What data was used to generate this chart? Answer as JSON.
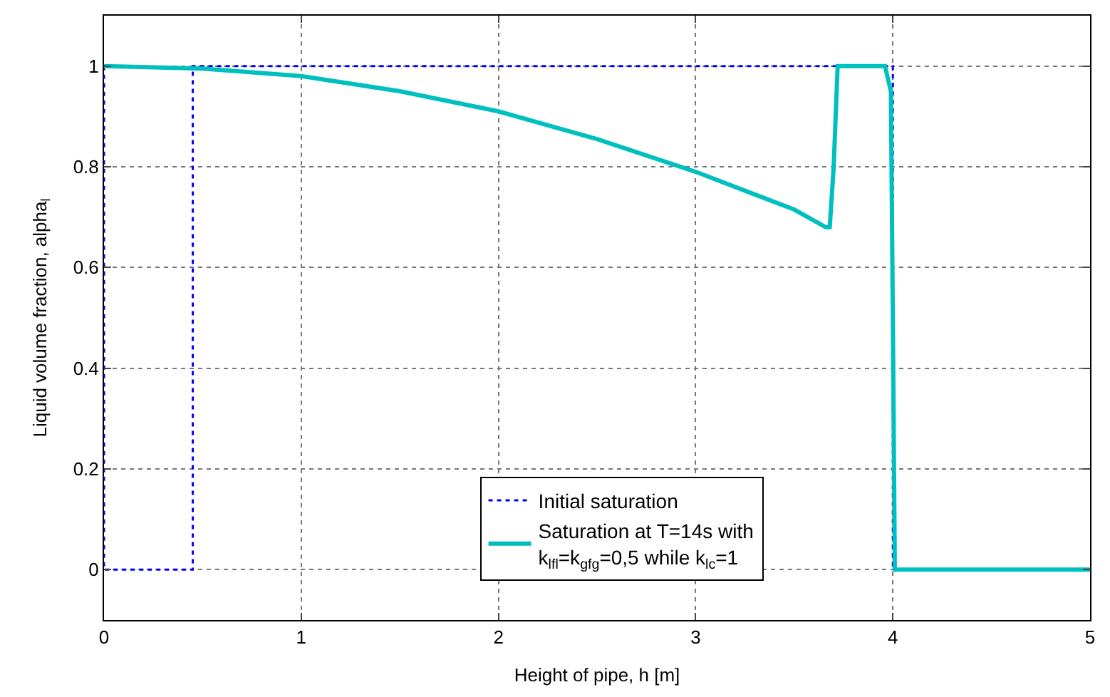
{
  "chart_data": {
    "type": "line",
    "xlabel": "Height of pipe, h [m]",
    "ylabel": "Liquid volume fraction, alpha$_{l}$",
    "xlim": [
      0,
      5
    ],
    "xticks": [
      0,
      1,
      2,
      3,
      4,
      5
    ],
    "ylim": [
      -0.1,
      1.1
    ],
    "yticks": [
      0,
      0.2,
      0.4,
      0.6,
      0.8,
      1
    ],
    "grid": true,
    "legend": "bottom",
    "series": [
      {
        "name": "Initial saturation",
        "color": "#0000ff",
        "line_style": "dotted",
        "x": [
          0,
          0,
          0.45,
          0.45,
          4,
          4,
          5
        ],
        "values": [
          1,
          0,
          0,
          1,
          1,
          0,
          0
        ]
      },
      {
        "name": "Saturation at T=14s with\nk$_{lfl}$=k$_{gfg}$=0,5 while k$_{lc}$=1",
        "color": "#00bfbf",
        "line_style": "solid",
        "x": [
          0,
          0.5,
          1,
          1.5,
          2,
          2.5,
          3,
          3.3,
          3.5,
          3.66,
          3.68,
          3.7,
          3.72,
          3.96,
          3.99,
          4.0,
          4.01,
          5
        ],
        "values": [
          1,
          0.995,
          0.98,
          0.95,
          0.91,
          0.855,
          0.79,
          0.745,
          0.715,
          0.68,
          0.68,
          0.8,
          1,
          1,
          0.95,
          0.5,
          0,
          0
        ]
      }
    ]
  }
}
